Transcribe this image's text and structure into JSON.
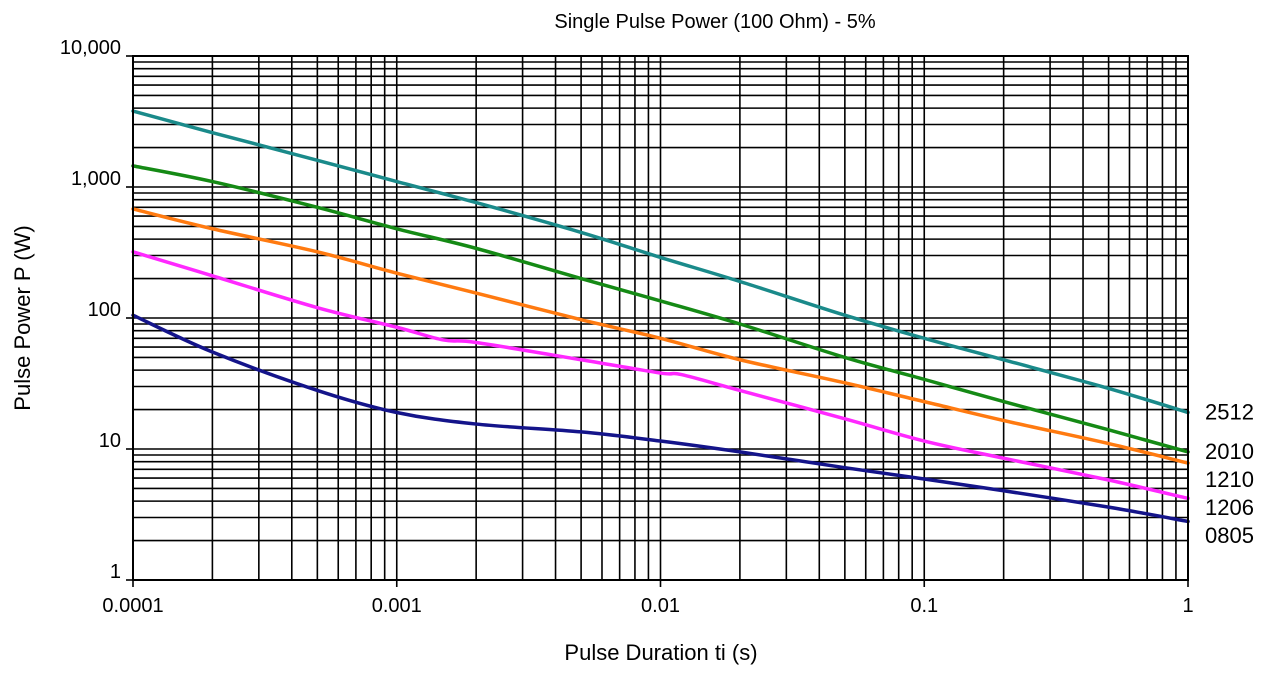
{
  "chart_data": {
    "type": "line",
    "title": "Single Pulse Power (100 Ohm) - 5%",
    "xlabel": "Pulse Duration ti (s)",
    "ylabel": "Pulse Power P (W)",
    "xscale": "log",
    "yscale": "log",
    "xlim": [
      0.0001,
      1
    ],
    "ylim": [
      1,
      10000
    ],
    "grid": true,
    "x_ticks": [
      {
        "value": 0.0001,
        "label": "0.0001"
      },
      {
        "value": 0.001,
        "label": "0.001"
      },
      {
        "value": 0.01,
        "label": "0.01"
      },
      {
        "value": 0.1,
        "label": "0.1"
      },
      {
        "value": 1,
        "label": "1"
      }
    ],
    "y_ticks": [
      {
        "value": 1,
        "label": "1"
      },
      {
        "value": 10,
        "label": "10"
      },
      {
        "value": 100,
        "label": "100"
      },
      {
        "value": 1000,
        "label": "1,000"
      },
      {
        "value": 10000,
        "label": "10,000"
      }
    ],
    "series": [
      {
        "name": "2512",
        "color": "#1a8a8a",
        "x": [
          0.0001,
          0.0002,
          0.0005,
          0.001,
          0.002,
          0.005,
          0.01,
          0.02,
          0.05,
          0.1,
          0.2,
          0.5,
          1
        ],
        "y": [
          3800,
          2600,
          1600,
          1100,
          760,
          450,
          290,
          190,
          105,
          70,
          48,
          29,
          19
        ]
      },
      {
        "name": "2010",
        "color": "#158a15",
        "x": [
          0.0001,
          0.0002,
          0.0005,
          0.001,
          0.002,
          0.005,
          0.01,
          0.02,
          0.05,
          0.1,
          0.2,
          0.5,
          1
        ],
        "y": [
          1450,
          1100,
          700,
          480,
          340,
          200,
          135,
          90,
          50,
          34,
          23,
          14,
          9.5
        ]
      },
      {
        "name": "1210",
        "color": "#ff7a10",
        "x": [
          0.0001,
          0.0002,
          0.0005,
          0.001,
          0.002,
          0.005,
          0.01,
          0.02,
          0.05,
          0.1,
          0.2,
          0.5,
          1
        ],
        "y": [
          680,
          480,
          320,
          220,
          155,
          97,
          70,
          48,
          32,
          23,
          16.5,
          11,
          7.8
        ]
      },
      {
        "name": "1206",
        "color": "#ff28ff",
        "x": [
          0.0001,
          0.0002,
          0.0005,
          0.001,
          0.0015,
          0.002,
          0.005,
          0.01,
          0.012,
          0.02,
          0.05,
          0.1,
          0.2,
          0.5,
          1
        ],
        "y": [
          320,
          210,
          120,
          85,
          68,
          65,
          48,
          38,
          37,
          28,
          17,
          11.5,
          8.5,
          5.8,
          4.2
        ]
      },
      {
        "name": "0805",
        "color": "#14148a",
        "x": [
          0.0001,
          0.0002,
          0.0005,
          0.001,
          0.002,
          0.005,
          0.01,
          0.02,
          0.05,
          0.1,
          0.2,
          0.5,
          1
        ],
        "y": [
          105,
          55,
          28,
          19,
          15.5,
          13.5,
          11.5,
          9.5,
          7.2,
          5.9,
          4.8,
          3.6,
          2.8
        ]
      }
    ]
  }
}
